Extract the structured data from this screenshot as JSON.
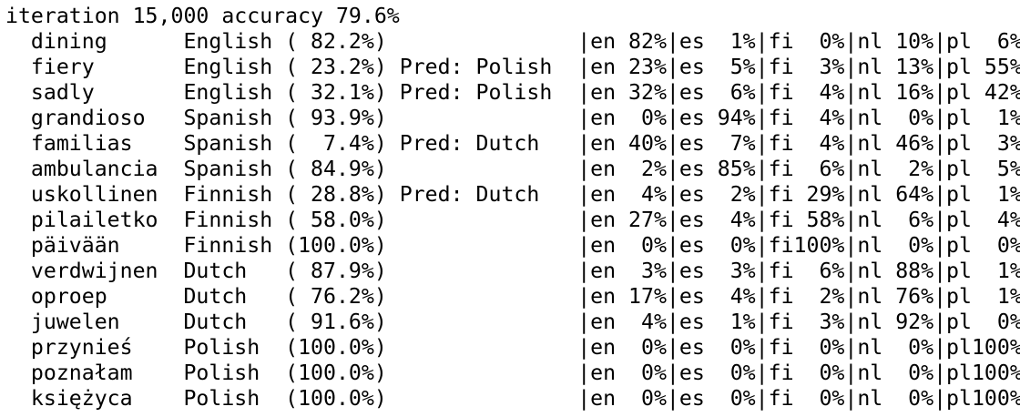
{
  "header": "iteration 15,000 accuracy 79.6%",
  "rows": [
    "  dining      English ( 82.2%)               |en 82%|es  1%|fi  0%|nl 10%|pl  6%",
    "  fiery       English ( 23.2%) Pred: Polish  |en 23%|es  5%|fi  3%|nl 13%|pl 55%",
    "  sadly       English ( 32.1%) Pred: Polish  |en 32%|es  6%|fi  4%|nl 16%|pl 42%",
    "  grandioso   Spanish ( 93.9%)               |en  0%|es 94%|fi  4%|nl  0%|pl  1%",
    "  familias    Spanish (  7.4%) Pred: Dutch   |en 40%|es  7%|fi  4%|nl 46%|pl  3%",
    "  ambulancia  Spanish ( 84.9%)               |en  2%|es 85%|fi  6%|nl  2%|pl  5%",
    "  uskollinen  Finnish ( 28.8%) Pred: Dutch   |en  4%|es  2%|fi 29%|nl 64%|pl  1%",
    "  pilailetko  Finnish ( 58.0%)               |en 27%|es  4%|fi 58%|nl  6%|pl  4%",
    "  päivään     Finnish (100.0%)               |en  0%|es  0%|fi100%|nl  0%|pl  0%",
    "  verdwijnen  Dutch   ( 87.9%)               |en  3%|es  3%|fi  6%|nl 88%|pl  1%",
    "  oproep      Dutch   ( 76.2%)               |en 17%|es  4%|fi  2%|nl 76%|pl  1%",
    "  juwelen     Dutch   ( 91.6%)               |en  4%|es  1%|fi  3%|nl 92%|pl  0%",
    "  przynieś    Polish  (100.0%)               |en  0%|es  0%|fi  0%|nl  0%|pl100%",
    "  poznałam    Polish  (100.0%)               |en  0%|es  0%|fi  0%|nl  0%|pl100%",
    "  księżyca    Polish  (100.0%)               |en  0%|es  0%|fi  0%|nl  0%|pl100%"
  ]
}
